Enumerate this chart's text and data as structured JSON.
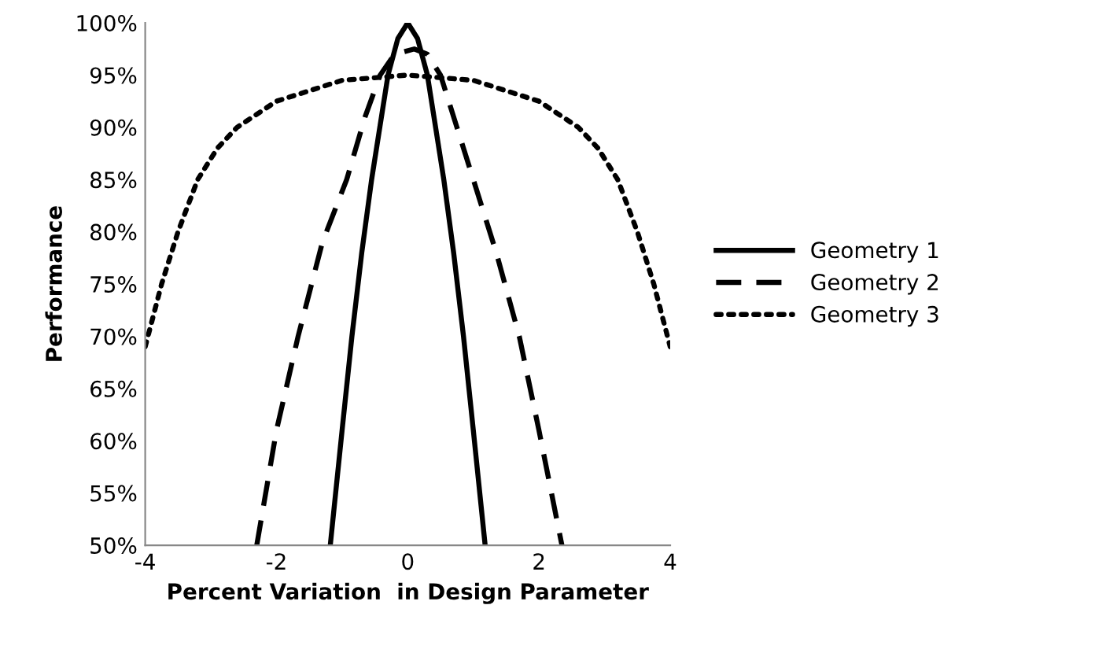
{
  "chart_data": {
    "type": "line",
    "xlabel": "Percent Variation  in Design Parameter",
    "ylabel": "Performance",
    "xlim": [
      -4,
      4
    ],
    "ylim": [
      50,
      100
    ],
    "xticks": [
      {
        "value": -4,
        "label": "-4"
      },
      {
        "value": -2,
        "label": "-2"
      },
      0,
      2,
      4
    ],
    "yticks": [
      {
        "value": 50,
        "label": "50%"
      },
      {
        "value": 55,
        "label": "55%"
      },
      {
        "value": 60,
        "label": "60%"
      },
      {
        "value": 65,
        "label": "65%"
      },
      {
        "value": 70,
        "label": "70%"
      },
      {
        "value": 75,
        "label": "75%"
      },
      {
        "value": 80,
        "label": "80%"
      },
      {
        "value": 85,
        "label": "85%"
      },
      {
        "value": 90,
        "label": "90%"
      },
      {
        "value": 95,
        "label": "95%"
      },
      {
        "value": 100,
        "label": "100%"
      }
    ],
    "grid": false,
    "legend": "right",
    "marker": "none",
    "series": [
      {
        "name": "Geometry 1",
        "color": "#000000",
        "line_style": "solid",
        "x": [
          -1.18,
          -1.0,
          -0.85,
          -0.7,
          -0.55,
          -0.4,
          -0.3,
          -0.15,
          0,
          0.15,
          0.3,
          0.4,
          0.55,
          0.7,
          0.85,
          1.0,
          1.18
        ],
        "values": [
          50,
          61,
          70,
          78,
          85,
          91,
          95,
          98.5,
          100,
          98.5,
          95,
          91,
          85,
          78,
          70,
          61,
          50
        ]
      },
      {
        "name": "Geometry 2",
        "color": "#000000",
        "line_style": "dashed",
        "x": [
          -2.3,
          -2.0,
          -1.67,
          -1.3,
          -0.93,
          -0.65,
          -0.42,
          -0.2,
          0.1,
          0.3,
          0.5,
          0.75,
          1.0,
          1.35,
          1.7,
          2.0,
          2.35
        ],
        "values": [
          50,
          61,
          70,
          79,
          85,
          91,
          95,
          97,
          97.5,
          97,
          95,
          90,
          85,
          78,
          70,
          61,
          50
        ]
      },
      {
        "name": "Geometry 3",
        "color": "#000000",
        "line_style": "dotted",
        "x": [
          -4,
          -3.75,
          -3.5,
          -3.2,
          -2.9,
          -2.6,
          -2.0,
          -1.0,
          0,
          1.0,
          2.0,
          2.6,
          2.9,
          3.2,
          3.5,
          3.75,
          4
        ],
        "values": [
          69,
          75,
          80,
          85,
          88,
          90,
          92.5,
          94.5,
          95,
          94.5,
          92.5,
          90,
          88,
          85,
          80,
          75,
          69
        ]
      }
    ]
  }
}
